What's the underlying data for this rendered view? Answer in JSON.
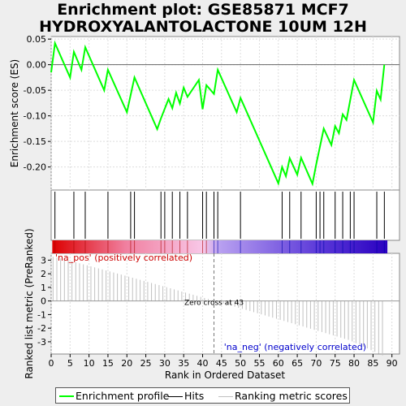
{
  "title_line1": "Enrichment plot: GSE85871 MCF7",
  "title_line2": "HYDROXYALANTOLACTONE 10UM 12H",
  "colors": {
    "es_line": "#00ff00",
    "hits": "#000000",
    "metric_bars": "#c0c0c0",
    "pos_label": "#cc0000",
    "neg_label": "#0000cc",
    "zero_line": "#666666"
  },
  "chart_data": {
    "type": "line",
    "title": "Enrichment plot: GSE85871 MCF7 HYDROXYALANTOLACTONE 10UM 12H",
    "xlabel": "Rank in Ordered Dataset",
    "ylabel_top": "Enrichment score (ES)",
    "ylabel_bottom": "Ranked list metric (PreRanked)",
    "xlim": [
      0,
      92
    ],
    "ylim_top": [
      -0.245,
      0.055
    ],
    "ylim_bottom": [
      -3.9,
      3.5
    ],
    "x_ticks": [
      0,
      5,
      10,
      15,
      20,
      25,
      30,
      35,
      40,
      45,
      50,
      55,
      60,
      65,
      70,
      75,
      80,
      85,
      90
    ],
    "y_ticks_top": [
      0.05,
      0.0,
      -0.05,
      -0.1,
      -0.15,
      -0.2
    ],
    "y_ticks_bottom": [
      3,
      2,
      1,
      0,
      -1,
      -2,
      -3
    ],
    "es_curve": {
      "x": [
        0,
        1,
        5,
        6,
        8,
        9,
        14,
        15,
        20,
        22,
        28,
        29,
        31,
        32,
        33,
        34,
        35,
        36,
        39,
        40,
        41,
        43,
        44,
        49,
        50,
        60,
        61,
        62,
        63,
        65,
        66,
        69,
        70,
        72,
        74,
        75,
        76,
        77,
        78,
        80,
        85,
        86,
        87,
        88
      ],
      "y": [
        -0.015,
        0.042,
        -0.025,
        0.025,
        -0.01,
        0.034,
        -0.05,
        -0.01,
        -0.093,
        -0.025,
        -0.126,
        -0.105,
        -0.067,
        -0.085,
        -0.055,
        -0.076,
        -0.045,
        -0.063,
        -0.03,
        -0.087,
        -0.04,
        -0.057,
        -0.01,
        -0.093,
        -0.065,
        -0.232,
        -0.2,
        -0.218,
        -0.183,
        -0.215,
        -0.182,
        -0.233,
        -0.195,
        -0.125,
        -0.157,
        -0.12,
        -0.134,
        -0.097,
        -0.108,
        -0.03,
        -0.113,
        -0.051,
        -0.068,
        0.0
      ]
    },
    "hits": [
      1,
      6,
      9,
      15,
      21,
      22,
      29,
      30,
      32,
      34,
      36,
      40,
      41,
      43,
      44,
      50,
      61,
      63,
      66,
      70,
      71,
      72,
      75,
      77,
      79,
      80,
      86,
      88
    ],
    "zero_cross": 43,
    "metric_range": [
      3.25,
      -3.6
    ],
    "metric_count": 88,
    "annotations": {
      "zero_cross": "Zero cross at 43",
      "pos": "'na_pos' (positively correlated)",
      "neg": "'na_neg' (negatively correlated)"
    },
    "legend": [
      "Enrichment profile",
      "Hits",
      "Ranking metric scores"
    ],
    "legend_position": "bottom"
  }
}
